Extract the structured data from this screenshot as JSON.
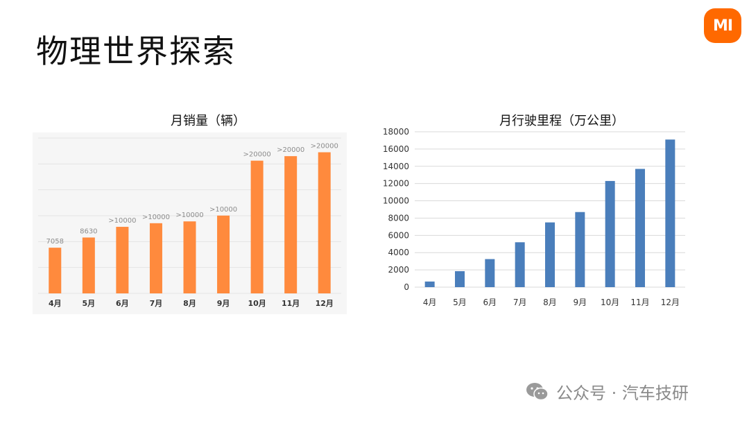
{
  "slide": {
    "title": "物理世界探索"
  },
  "logo": {
    "text": "MI"
  },
  "footer": {
    "text": "公众号 · 汽车技研",
    "icon": "wechat-icon"
  },
  "colors": {
    "sales_bar": "#ff8a3d",
    "mileage_bar": "#4a7ebb",
    "brand": "#ff6900"
  },
  "chart_data": [
    {
      "type": "bar",
      "title": "月销量（辆）",
      "categories": [
        "4月",
        "5月",
        "6月",
        "7月",
        "8月",
        "9月",
        "10月",
        "11月",
        "12月"
      ],
      "values": [
        7058,
        8630,
        10280,
        10840,
        11120,
        12020,
        20500,
        21200,
        21800
      ],
      "data_labels": [
        "7058",
        "8630",
        ">10000",
        ">10000",
        ">10000",
        ">10000",
        ">20000",
        ">20000",
        ">20000"
      ],
      "ylim": [
        0,
        24000
      ],
      "grid": true,
      "legend": "none"
    },
    {
      "type": "bar",
      "title": "月行驶里程（万公里）",
      "categories": [
        "4月",
        "5月",
        "6月",
        "7月",
        "8月",
        "9月",
        "10月",
        "11月",
        "12月"
      ],
      "values": [
        650,
        1850,
        3250,
        5200,
        7500,
        8700,
        12300,
        13700,
        17100
      ],
      "yticks": [
        "0",
        "2000",
        "4000",
        "6000",
        "8000",
        "10000",
        "12000",
        "14000",
        "16000",
        "18000"
      ],
      "ylim": [
        0,
        18000
      ],
      "grid": true,
      "legend": "none"
    }
  ]
}
